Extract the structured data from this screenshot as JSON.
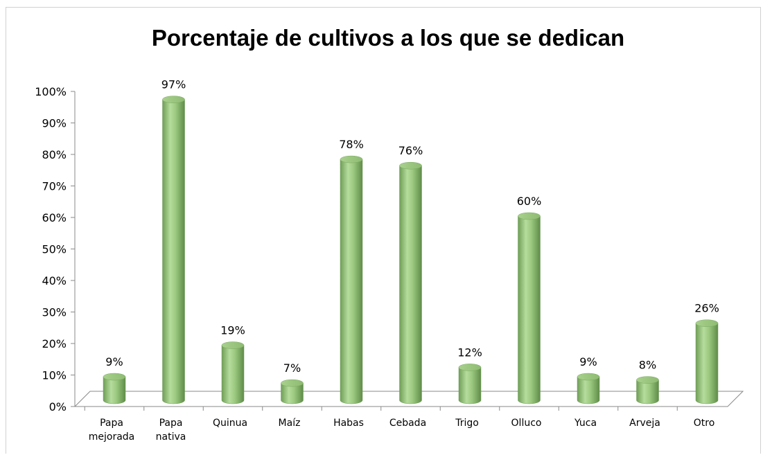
{
  "chart_data": {
    "type": "bar",
    "title": "Porcentaje de cultivos a los que se dedican",
    "categories": [
      [
        "Papa",
        "mejorada"
      ],
      [
        "Papa",
        "nativa"
      ],
      [
        "Quinua"
      ],
      [
        "Maíz"
      ],
      [
        "Habas"
      ],
      [
        "Cebada"
      ],
      [
        "Trigo"
      ],
      [
        "Olluco"
      ],
      [
        "Yuca"
      ],
      [
        "Arveja"
      ],
      [
        "Otro"
      ]
    ],
    "values": [
      9,
      97,
      19,
      7,
      78,
      76,
      12,
      60,
      9,
      8,
      26
    ],
    "value_labels": [
      "9%",
      "97%",
      "19%",
      "7%",
      "78%",
      "76%",
      "12%",
      "60%",
      "9%",
      "8%",
      "26%"
    ],
    "yticks": [
      "0%",
      "10%",
      "20%",
      "30%",
      "40%",
      "50%",
      "60%",
      "70%",
      "80%",
      "90%",
      "100%"
    ],
    "ylim": [
      0,
      100
    ],
    "grid": false,
    "legend": "none",
    "bar_color": "#9bc87f",
    "bar_style": "3d-cylinder"
  }
}
